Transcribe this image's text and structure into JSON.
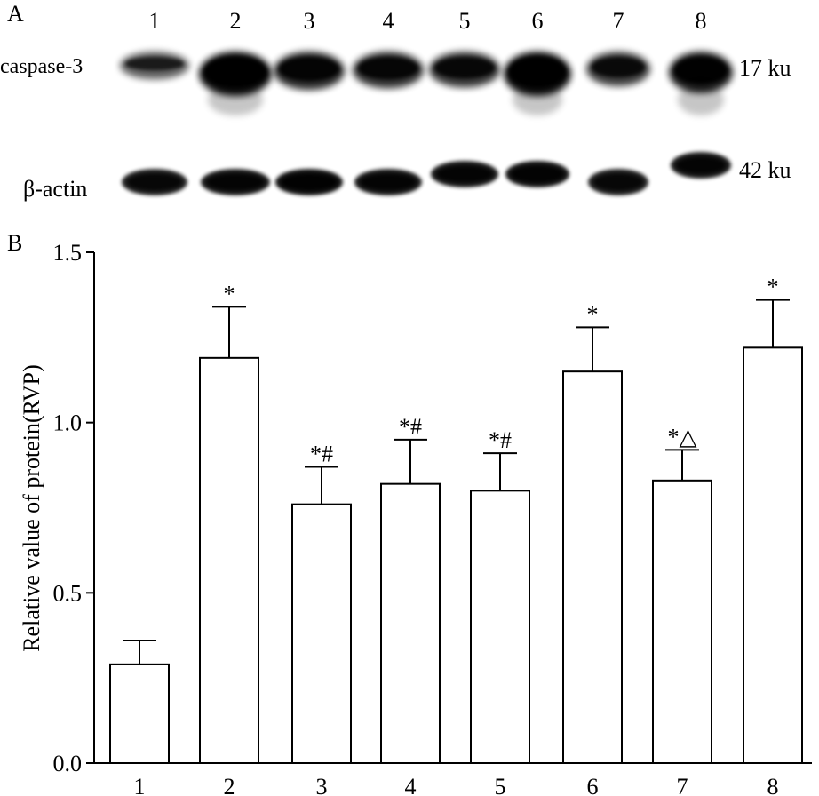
{
  "panel_a": {
    "label": "A",
    "lanes": [
      "1",
      "2",
      "3",
      "4",
      "5",
      "6",
      "7",
      "8"
    ],
    "rows": [
      {
        "protein": "caspase-3",
        "size": "17 ku",
        "intensity": [
          0.45,
          1.0,
          0.8,
          0.75,
          0.72,
          1.0,
          0.68,
          0.9
        ]
      },
      {
        "protein": "β-actin",
        "size": "42 ku",
        "intensity": [
          0.8,
          0.85,
          0.9,
          0.85,
          0.85,
          0.88,
          0.8,
          0.85
        ]
      }
    ]
  },
  "chart_data": {
    "type": "bar",
    "panel_label": "B",
    "categories": [
      "1",
      "2",
      "3",
      "4",
      "5",
      "6",
      "7",
      "8"
    ],
    "values": [
      0.29,
      1.19,
      0.76,
      0.82,
      0.8,
      1.15,
      0.83,
      1.22
    ],
    "errors": [
      0.07,
      0.15,
      0.11,
      0.13,
      0.11,
      0.13,
      0.09,
      0.14
    ],
    "annotations": [
      "",
      "*",
      "*#",
      "*#",
      "*#",
      "*",
      "*△",
      "*"
    ],
    "ylabel": "Relative value of protein(RVP)",
    "xlabel": "",
    "ylim": [
      0,
      1.5
    ],
    "yticks": [
      "0.0",
      "0.5",
      "1.0",
      "1.5"
    ],
    "colors": {
      "bar_fill": "#ffffff",
      "bar_stroke": "#000000",
      "band": "#000000"
    }
  }
}
